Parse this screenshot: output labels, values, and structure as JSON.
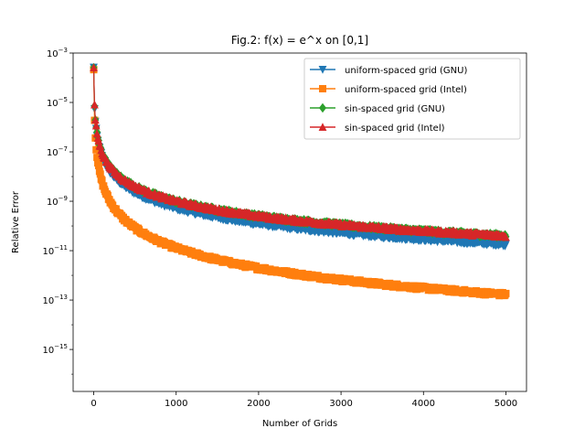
{
  "chart_data": {
    "type": "line",
    "title": "Fig.2: f(x) = e^x on [0,1]",
    "xlabel": "Number of Grids",
    "ylabel": "Relative Error",
    "xlim": [
      -250,
      5250
    ],
    "ylim_log10": [
      -16.7,
      -3
    ],
    "yscale": "log",
    "x_ticks": [
      0,
      1000,
      2000,
      3000,
      4000,
      5000
    ],
    "x_tick_labels": [
      "0",
      "1000",
      "2000",
      "3000",
      "4000",
      "5000"
    ],
    "y_ticks_exp": [
      -15,
      -13,
      -11,
      -9,
      -7,
      -5,
      -3
    ],
    "y_tick_labels": [
      "−15",
      "−13",
      "−11",
      "−9",
      "−7",
      "−5",
      "−3"
    ],
    "y_tick_base": "10",
    "grid": false,
    "legend_position": "top-right",
    "series": [
      {
        "name": "uniform-spaced grid (GNU)",
        "color": "#1f77b4",
        "marker": "triangle-down",
        "first_value": 0.00025,
        "decay_order": 2,
        "noise_floor": 1e-16
      },
      {
        "name": "uniform-spaced grid (Intel)",
        "color": "#ff7f0e",
        "marker": "square",
        "first_value": 0.00025,
        "decay_order": 2,
        "noise_floor": 1e-16
      },
      {
        "name": "sin-spaced grid (GNU)",
        "color": "#2ca02c",
        "marker": "diamond",
        "first_value": 0.00025,
        "decay_order": 2,
        "noise_floor": 1e-16
      },
      {
        "name": "sin-spaced grid (Intel)",
        "color": "#d62728",
        "marker": "triangle-up",
        "first_value": 0.00025,
        "decay_order": 2,
        "noise_floor": 1e-16
      }
    ]
  }
}
